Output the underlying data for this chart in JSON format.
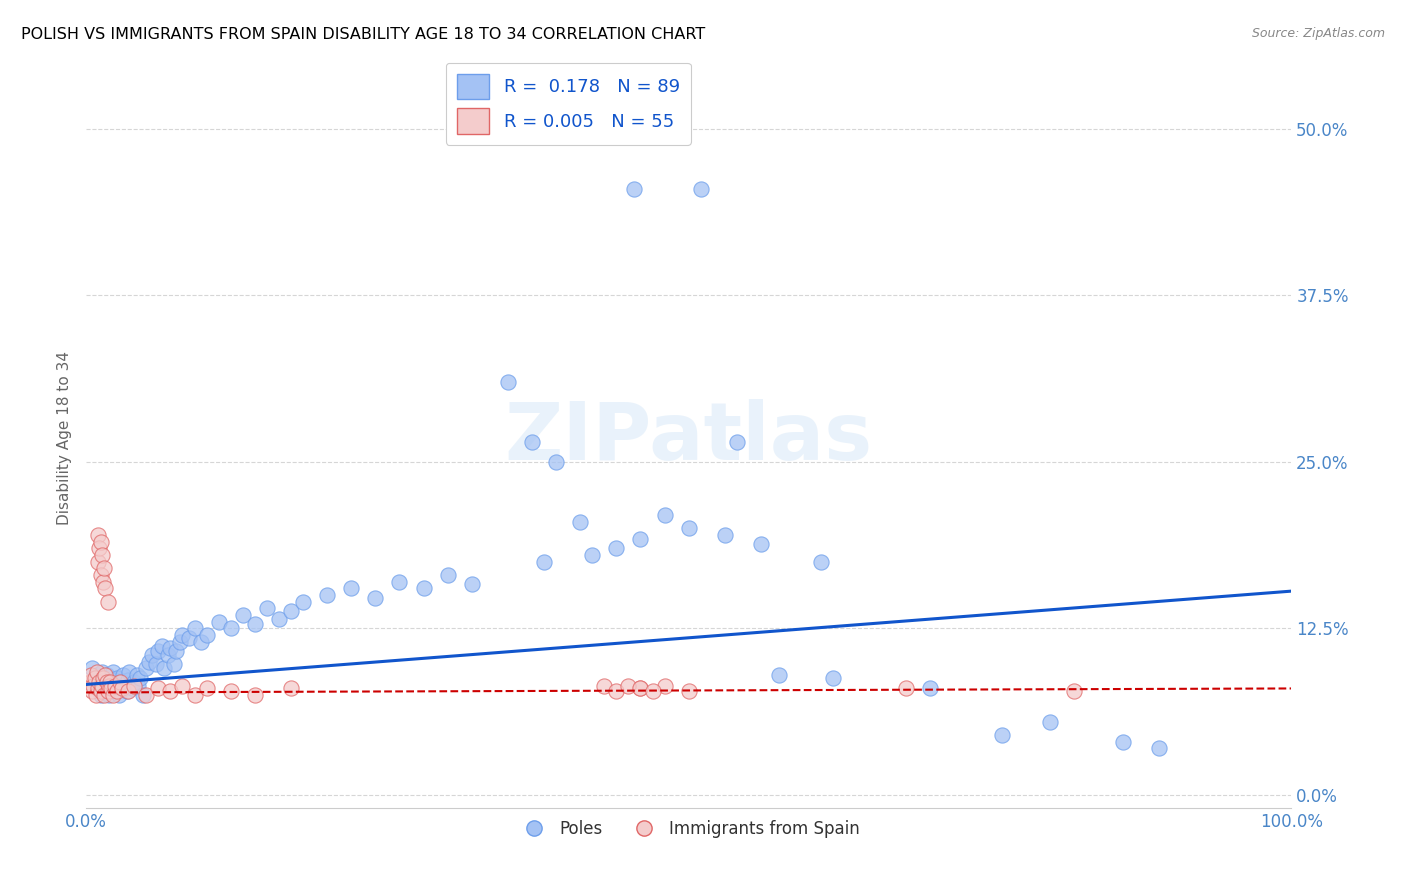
{
  "title": "POLISH VS IMMIGRANTS FROM SPAIN DISABILITY AGE 18 TO 34 CORRELATION CHART",
  "source": "Source: ZipAtlas.com",
  "ylabel": "Disability Age 18 to 34",
  "xlim": [
    0,
    1.0
  ],
  "ylim": [
    -0.01,
    0.545
  ],
  "yticks": [
    0.0,
    0.125,
    0.25,
    0.375,
    0.5
  ],
  "ytick_labels": [
    "0.0%",
    "12.5%",
    "25.0%",
    "37.5%",
    "50.0%"
  ],
  "xticks": [
    0.0,
    0.25,
    0.5,
    0.75,
    1.0
  ],
  "xtick_labels": [
    "0.0%",
    "",
    "",
    "",
    "100.0%"
  ],
  "blue_R": 0.178,
  "blue_N": 89,
  "pink_R": 0.005,
  "pink_N": 55,
  "blue_color": "#a4c2f4",
  "pink_color": "#f4cccc",
  "blue_edge_color": "#6d9eeb",
  "pink_edge_color": "#e06666",
  "blue_line_color": "#1155cc",
  "pink_line_color": "#cc0000",
  "axis_color": "#4a86c8",
  "title_color": "#000000",
  "background_color": "#ffffff",
  "grid_color": "#cccccc",
  "blue_scatter_x": [
    0.005,
    0.007,
    0.009,
    0.01,
    0.011,
    0.012,
    0.013,
    0.014,
    0.015,
    0.016,
    0.017,
    0.018,
    0.019,
    0.02,
    0.021,
    0.022,
    0.023,
    0.024,
    0.025,
    0.026,
    0.027,
    0.028,
    0.03,
    0.031,
    0.032,
    0.034,
    0.035,
    0.036,
    0.038,
    0.04,
    0.042,
    0.043,
    0.045,
    0.047,
    0.05,
    0.052,
    0.055,
    0.058,
    0.06,
    0.063,
    0.065,
    0.068,
    0.07,
    0.073,
    0.075,
    0.078,
    0.08,
    0.085,
    0.09,
    0.095,
    0.1,
    0.11,
    0.12,
    0.13,
    0.14,
    0.15,
    0.16,
    0.17,
    0.18,
    0.2,
    0.22,
    0.24,
    0.26,
    0.28,
    0.3,
    0.32,
    0.35,
    0.37,
    0.39,
    0.41,
    0.38,
    0.42,
    0.44,
    0.46,
    0.5,
    0.53,
    0.56,
    0.48,
    0.61,
    0.7,
    0.76,
    0.8,
    0.86,
    0.89,
    0.455,
    0.51,
    0.54,
    0.575,
    0.62
  ],
  "blue_scatter_y": [
    0.095,
    0.085,
    0.09,
    0.08,
    0.088,
    0.075,
    0.092,
    0.085,
    0.078,
    0.082,
    0.09,
    0.088,
    0.075,
    0.085,
    0.08,
    0.092,
    0.078,
    0.086,
    0.082,
    0.088,
    0.075,
    0.08,
    0.085,
    0.09,
    0.082,
    0.078,
    0.086,
    0.092,
    0.08,
    0.085,
    0.09,
    0.082,
    0.088,
    0.075,
    0.095,
    0.1,
    0.105,
    0.098,
    0.108,
    0.112,
    0.095,
    0.105,
    0.11,
    0.098,
    0.108,
    0.115,
    0.12,
    0.118,
    0.125,
    0.115,
    0.12,
    0.13,
    0.125,
    0.135,
    0.128,
    0.14,
    0.132,
    0.138,
    0.145,
    0.15,
    0.155,
    0.148,
    0.16,
    0.155,
    0.165,
    0.158,
    0.31,
    0.265,
    0.25,
    0.205,
    0.175,
    0.18,
    0.185,
    0.192,
    0.2,
    0.195,
    0.188,
    0.21,
    0.175,
    0.08,
    0.045,
    0.055,
    0.04,
    0.035,
    0.455,
    0.455,
    0.265,
    0.09,
    0.088
  ],
  "pink_scatter_x": [
    0.003,
    0.004,
    0.005,
    0.006,
    0.007,
    0.008,
    0.009,
    0.01,
    0.011,
    0.012,
    0.013,
    0.014,
    0.015,
    0.016,
    0.017,
    0.018,
    0.019,
    0.02,
    0.021,
    0.022,
    0.024,
    0.026,
    0.028,
    0.03,
    0.035,
    0.04,
    0.05,
    0.06,
    0.07,
    0.08,
    0.09,
    0.1,
    0.12,
    0.14,
    0.17,
    0.01,
    0.012,
    0.014,
    0.016,
    0.018,
    0.43,
    0.44,
    0.46,
    0.48,
    0.5,
    0.68,
    0.82,
    0.45,
    0.46,
    0.47,
    0.01,
    0.011,
    0.012,
    0.013,
    0.015
  ],
  "pink_scatter_y": [
    0.085,
    0.09,
    0.078,
    0.082,
    0.088,
    0.075,
    0.092,
    0.08,
    0.085,
    0.078,
    0.082,
    0.088,
    0.075,
    0.09,
    0.085,
    0.078,
    0.082,
    0.085,
    0.08,
    0.075,
    0.082,
    0.078,
    0.085,
    0.08,
    0.078,
    0.082,
    0.075,
    0.08,
    0.078,
    0.082,
    0.075,
    0.08,
    0.078,
    0.075,
    0.08,
    0.175,
    0.165,
    0.16,
    0.155,
    0.145,
    0.082,
    0.078,
    0.08,
    0.082,
    0.078,
    0.08,
    0.078,
    0.082,
    0.08,
    0.078,
    0.195,
    0.185,
    0.19,
    0.18,
    0.17
  ],
  "blue_line_x0": 0.0,
  "blue_line_y0": 0.083,
  "blue_line_x1": 1.0,
  "blue_line_y1": 0.153,
  "pink_line_x0": 0.0,
  "pink_line_y0": 0.077,
  "pink_line_x1": 1.0,
  "pink_line_y1": 0.08
}
